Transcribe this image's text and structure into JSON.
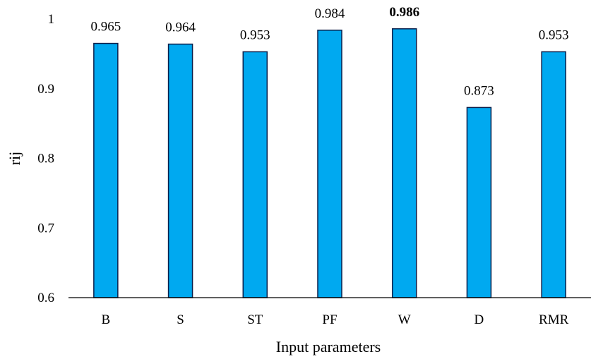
{
  "chart_data": {
    "type": "bar",
    "title": "",
    "xlabel": "Input parameters",
    "ylabel": "rij",
    "categories": [
      "B",
      "S",
      "ST",
      "PF",
      "W",
      "D",
      "RMR"
    ],
    "values": [
      0.965,
      0.964,
      0.953,
      0.984,
      0.986,
      0.873,
      0.953
    ],
    "value_labels": [
      "0.965",
      "0.964",
      "0.953",
      "0.984",
      "0.986",
      "0.873",
      "0.953"
    ],
    "bold_labels": [
      false,
      false,
      false,
      false,
      true,
      false,
      false
    ],
    "ylim": [
      0.6,
      1.0
    ],
    "y_ticks": [
      0.6,
      0.7,
      0.8,
      0.9,
      1.0
    ],
    "y_tick_labels": [
      "0.6",
      "0.7",
      "0.8",
      "0.9",
      "1"
    ],
    "grid": false,
    "legend": "none",
    "colors": {
      "bar_fill": "#00A9F0",
      "bar_stroke": "#0B1F4A",
      "axis": "#000000",
      "text": "#000000"
    }
  }
}
